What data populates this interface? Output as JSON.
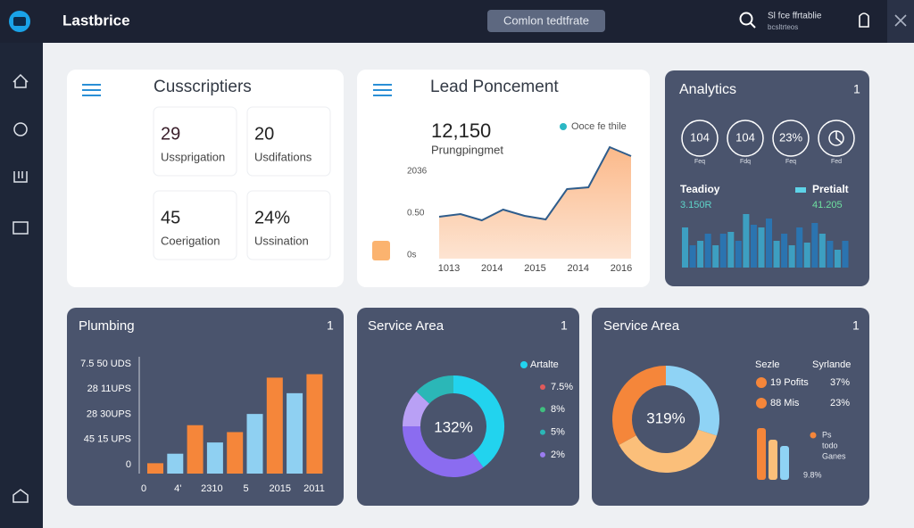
{
  "topbar": {
    "brand": "Lastbrice",
    "button": "Comlon tedtfrate",
    "user_name": "Sl fce ffrtablie",
    "user_sub": "bcsltrteos"
  },
  "subscriptions": {
    "title": "Cusscriptiers",
    "stats": [
      {
        "value": "29",
        "label": "Ussprigation"
      },
      {
        "value": "20",
        "label": "Usdifations"
      },
      {
        "value": "45",
        "label": "Coerigation"
      },
      {
        "value": "24%",
        "label": "Ussination"
      }
    ]
  },
  "lead": {
    "title": "Lead Poncement",
    "value": "12,150",
    "subtitle": "Prungpingmet",
    "legend": "Ooce fe thile",
    "ytick_labels": [
      "2036",
      "0.50",
      "0s"
    ],
    "x_labels": [
      "1013",
      "2014",
      "2015",
      "2014",
      "2016"
    ],
    "values": [
      47,
      50,
      43,
      55,
      48,
      44,
      78,
      80,
      125,
      115
    ],
    "ylim": [
      0,
      130
    ],
    "color": "#2f5d8c"
  },
  "analytics": {
    "title": "Analytics",
    "menu": "1",
    "rings": [
      {
        "value": "104",
        "label": "Feq"
      },
      {
        "value": "104",
        "label": "Fdq"
      },
      {
        "value": "23%",
        "label": "Feq"
      },
      {
        "label": "Fed"
      }
    ],
    "left_label": "Teadioy",
    "left_value": "3.150R",
    "right_label": "Pretialt",
    "right_value": "41.205",
    "bars": [
      45,
      25,
      30,
      38,
      25,
      38,
      40,
      30,
      60,
      48,
      45,
      55,
      30,
      38,
      25,
      45,
      28,
      50,
      38,
      30,
      20,
      30
    ],
    "ylim": [
      0,
      70
    ],
    "colors": [
      "#3d9fc1",
      "#2b74b0"
    ]
  },
  "plumbing": {
    "title": "Plumbing",
    "menu": "1",
    "ytick_labels": [
      "7.5 50 UDS",
      "28 11UPS",
      "28 30UPS",
      "45 15 UPS",
      "0"
    ],
    "x_labels": [
      "0",
      "4'",
      "2310",
      "5",
      "2015",
      "2011"
    ],
    "values": [
      12,
      23,
      56,
      36,
      48,
      69,
      111,
      93,
      115
    ],
    "ylim": [
      0,
      130
    ],
    "colors": [
      "#f5863a",
      "#8fd0f2"
    ]
  },
  "service1": {
    "title": "Service Area",
    "menu": "1",
    "center": "132%",
    "legend_title": "Artalte",
    "legend": [
      {
        "label": "7.5%",
        "color": "#e05a5a"
      },
      {
        "label": "8%",
        "color": "#3fbf7f"
      },
      {
        "label": "5%",
        "color": "#2bb7b7"
      },
      {
        "label": "2%",
        "color": "#9b7cf0"
      }
    ],
    "values": [
      40,
      35,
      12,
      13
    ],
    "colors": [
      "#22d3ee",
      "#8b6cf0",
      "#b9a0f5",
      "#2bb7b7"
    ]
  },
  "service2": {
    "title": "Service Area",
    "menu": "1",
    "center": "319%",
    "values": [
      30,
      37,
      33
    ],
    "colors": [
      "#8fd3f5",
      "#fbbf7a",
      "#f5863a"
    ],
    "headers": [
      "Sezle",
      "Syrlande"
    ],
    "rows": [
      {
        "label": "19 Pofits",
        "value": "37%",
        "color": "#f5863a"
      },
      {
        "label": "88 Mis",
        "value": "23%",
        "color": "#f5863a"
      }
    ],
    "mini_bars": [
      58,
      45,
      38
    ],
    "mini_colors": [
      "#f5863a",
      "#fbbf7a",
      "#8fd3f5"
    ],
    "mini_ylim": [
      0,
      70
    ],
    "note_lines": [
      "Ps",
      "todo",
      "Ganes"
    ],
    "foot": "9.8%"
  }
}
